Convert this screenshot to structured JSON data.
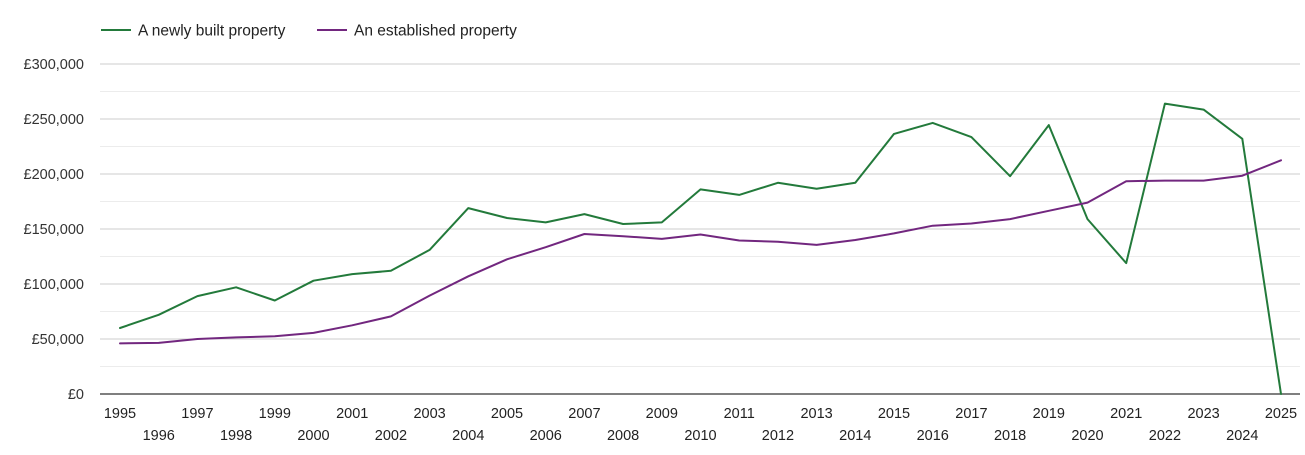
{
  "chart_data": {
    "type": "line",
    "title": "",
    "xlabel": "",
    "ylabel": "",
    "ylim": [
      0,
      300000
    ],
    "y_ticks": [
      0,
      50000,
      100000,
      150000,
      200000,
      250000,
      300000
    ],
    "y_tick_labels": [
      "£0",
      "£50,000",
      "£100,000",
      "£150,000",
      "£200,000",
      "£250,000",
      "£300,000"
    ],
    "x": [
      1995,
      1996,
      1997,
      1998,
      1999,
      2000,
      2001,
      2002,
      2003,
      2004,
      2005,
      2006,
      2007,
      2008,
      2009,
      2010,
      2011,
      2012,
      2013,
      2014,
      2015,
      2016,
      2017,
      2018,
      2019,
      2020,
      2021,
      2022,
      2023,
      2024,
      2025
    ],
    "x_tick_labels": [
      "1995",
      "1996",
      "1997",
      "1998",
      "1999",
      "2000",
      "2001",
      "2002",
      "2003",
      "2004",
      "2005",
      "2006",
      "2007",
      "2008",
      "2009",
      "2010",
      "2011",
      "2012",
      "2013",
      "2014",
      "2015",
      "2016",
      "2017",
      "2018",
      "2019",
      "2020",
      "2021",
      "2022",
      "2023",
      "2024",
      "2025"
    ],
    "grid": true,
    "legend_position": "top-left",
    "series": [
      {
        "name": "A newly built property",
        "color": "#237a3b",
        "values": [
          60000,
          72000,
          89000,
          97000,
          85000,
          103000,
          109000,
          112000,
          131000,
          169000,
          160000,
          156000,
          163500,
          154500,
          156000,
          186000,
          181000,
          192000,
          186500,
          192000,
          236500,
          246500,
          233500,
          198000,
          244500,
          159000,
          119000,
          264000,
          258500,
          232000,
          0
        ]
      },
      {
        "name": "An established property",
        "color": "#72277f",
        "values": [
          46000,
          46500,
          50000,
          51500,
          52500,
          55500,
          62500,
          70500,
          89500,
          107000,
          122500,
          133500,
          145500,
          143500,
          141000,
          145000,
          139500,
          138500,
          135500,
          140000,
          146000,
          153000,
          155000,
          159000,
          166500,
          174000,
          193500,
          194000,
          194000,
          198500,
          212500
        ]
      }
    ]
  }
}
